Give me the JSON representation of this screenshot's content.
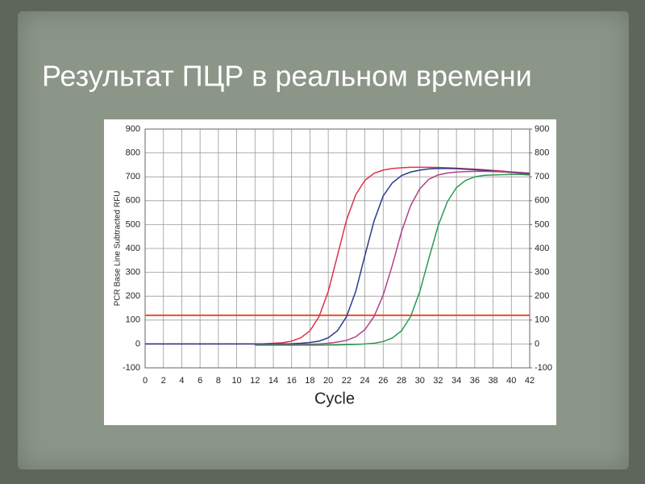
{
  "chart_data": {
    "type": "line",
    "title": "Результат ПЦР в реальном времени",
    "x_label": "Cycle",
    "y_label": "PCR Base Line Subtracted RFU",
    "x": [
      0,
      1,
      2,
      3,
      4,
      5,
      6,
      7,
      8,
      9,
      10,
      11,
      12,
      13,
      14,
      15,
      16,
      17,
      18,
      19,
      20,
      21,
      22,
      23,
      24,
      25,
      26,
      27,
      28,
      29,
      30,
      31,
      32,
      33,
      34,
      35,
      36,
      37,
      38,
      39,
      40,
      41,
      42
    ],
    "series": [
      {
        "color": "#e0304a",
        "values": [
          0,
          0,
          0,
          0,
          0,
          0,
          0,
          0,
          0,
          0,
          0,
          0,
          0,
          1,
          3,
          5,
          12,
          26,
          55,
          115,
          220,
          370,
          520,
          625,
          685,
          715,
          728,
          735,
          738,
          740,
          740,
          740,
          739,
          738,
          736,
          734,
          732,
          730,
          727,
          724,
          721,
          718,
          715
        ]
      },
      {
        "color": "#2a3a8a",
        "values": [
          0,
          0,
          0,
          0,
          0,
          0,
          0,
          0,
          0,
          0,
          0,
          0,
          0,
          0,
          0,
          0,
          1,
          3,
          6,
          12,
          26,
          55,
          115,
          220,
          370,
          515,
          620,
          675,
          705,
          720,
          728,
          733,
          735,
          735,
          734,
          732,
          730,
          727,
          724,
          721,
          718,
          715,
          712
        ]
      },
      {
        "color": "#b0408a",
        "values": [
          null,
          null,
          null,
          null,
          null,
          null,
          null,
          null,
          null,
          null,
          null,
          null,
          -3,
          -3,
          -3,
          -3,
          -3,
          -2,
          -1,
          0,
          3,
          8,
          15,
          30,
          60,
          115,
          205,
          330,
          470,
          580,
          650,
          690,
          708,
          716,
          720,
          722,
          723,
          723,
          722,
          721,
          720,
          718,
          716
        ]
      },
      {
        "color": "#2a9a50",
        "values": [
          null,
          null,
          null,
          null,
          null,
          null,
          null,
          null,
          null,
          null,
          null,
          null,
          -5,
          -5,
          -5,
          -5,
          -5,
          -5,
          -5,
          -5,
          -4,
          -4,
          -3,
          -2,
          0,
          3,
          10,
          25,
          55,
          115,
          220,
          360,
          495,
          595,
          655,
          685,
          700,
          706,
          708,
          709,
          710,
          710,
          708
        ]
      }
    ],
    "threshold": {
      "value": 120,
      "color": "#e8502a"
    },
    "xlim": [
      0,
      42
    ],
    "xticks": [
      0,
      2,
      4,
      6,
      8,
      10,
      12,
      14,
      16,
      18,
      20,
      22,
      24,
      26,
      28,
      30,
      32,
      34,
      36,
      38,
      40,
      42
    ],
    "ylim": [
      -100,
      900
    ],
    "yticks": [
      -100,
      0,
      100,
      200,
      300,
      400,
      500,
      600,
      700,
      800,
      900
    ],
    "y2lim": [
      -100,
      900
    ],
    "y2ticks": [
      -100,
      0,
      100,
      200,
      300,
      400,
      500,
      600,
      700,
      800,
      900
    ],
    "grid": true
  }
}
